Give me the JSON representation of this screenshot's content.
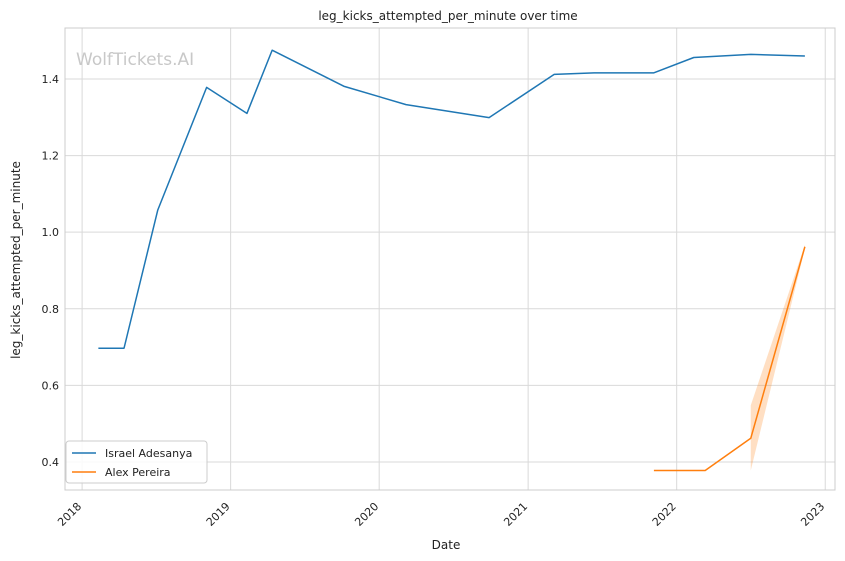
{
  "chart_data": {
    "type": "line",
    "title": "leg_kicks_attempted_per_minute over time",
    "xlabel": "Date",
    "ylabel": "leg_kicks_attempted_per_minute",
    "watermark": "WolfTickets.AI",
    "x_ticks": [
      "2018",
      "2019",
      "2020",
      "2021",
      "2022",
      "2023"
    ],
    "y_ticks": [
      "0.4",
      "0.6",
      "0.8",
      "1.0",
      "1.2",
      "1.4"
    ],
    "xlim": [
      "2017-11-20",
      "2023-01-25"
    ],
    "ylim": [
      0.327,
      1.533
    ],
    "grid": true,
    "legend_position": "lower-left",
    "series": [
      {
        "name": "Israel Adesanya",
        "color": "#1f77b4",
        "points": [
          {
            "x": "2018-02-10",
            "y": 0.697
          },
          {
            "x": "2018-04-14",
            "y": 0.697
          },
          {
            "x": "2018-07-06",
            "y": 1.058
          },
          {
            "x": "2018-11-03",
            "y": 1.378
          },
          {
            "x": "2019-02-10",
            "y": 1.31
          },
          {
            "x": "2019-04-13",
            "y": 1.475
          },
          {
            "x": "2019-10-06",
            "y": 1.381
          },
          {
            "x": "2020-03-07",
            "y": 1.333
          },
          {
            "x": "2020-09-27",
            "y": 1.299
          },
          {
            "x": "2021-03-06",
            "y": 1.412
          },
          {
            "x": "2021-06-12",
            "y": 1.416
          },
          {
            "x": "2021-11-06",
            "y": 1.416
          },
          {
            "x": "2022-02-12",
            "y": 1.456
          },
          {
            "x": "2022-07-02",
            "y": 1.464
          },
          {
            "x": "2022-11-12",
            "y": 1.46
          }
        ]
      },
      {
        "name": "Alex Pereira",
        "color": "#ff7f0e",
        "points": [
          {
            "x": "2021-11-06",
            "y": 0.378
          },
          {
            "x": "2022-03-12",
            "y": 0.378
          },
          {
            "x": "2022-07-02",
            "y": 0.462
          },
          {
            "x": "2022-11-12",
            "y": 0.962
          }
        ],
        "band": [
          {
            "x": "2022-07-02",
            "low": 0.378,
            "high": 0.548
          },
          {
            "x": "2022-11-12",
            "low": 0.957,
            "high": 0.967
          }
        ]
      }
    ]
  }
}
